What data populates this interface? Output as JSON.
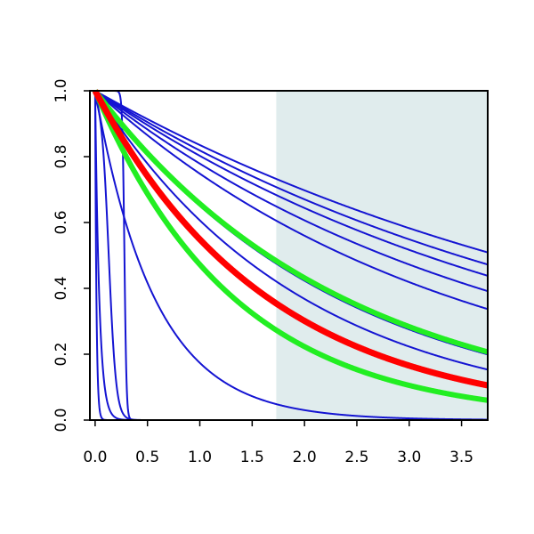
{
  "chart_data": {
    "type": "line",
    "title": "",
    "xlabel": "",
    "ylabel": "",
    "xlim": [
      -0.05,
      3.75
    ],
    "ylim": [
      0.0,
      1.0
    ],
    "grid": false,
    "legend": "none",
    "shaded_region": {
      "x_start": 1.73,
      "x_end": 3.75,
      "color": "#e0eced"
    },
    "x_ticks": [
      0.0,
      0.5,
      1.0,
      1.5,
      2.0,
      2.5,
      3.0,
      3.5
    ],
    "x_tick_labels": [
      "0.0",
      "0.5",
      "1.0",
      "1.5",
      "2.0",
      "2.5",
      "3.0",
      "3.5"
    ],
    "y_ticks": [
      0.0,
      0.2,
      0.4,
      0.6,
      0.8,
      1.0
    ],
    "y_tick_labels": [
      "0.0",
      "0.2",
      "0.4",
      "0.6",
      "0.8",
      "1.0"
    ],
    "colors": {
      "blue": "#1414d2",
      "red": "#ff0000",
      "green": "#22ee22",
      "axis": "#000000"
    },
    "series": [
      {
        "kind": "exp",
        "rate": 0.18,
        "color": "blue",
        "width": 2
      },
      {
        "kind": "exp",
        "rate": 0.2,
        "color": "blue",
        "width": 2
      },
      {
        "kind": "exp",
        "rate": 0.22,
        "color": "blue",
        "width": 2
      },
      {
        "kind": "exp",
        "rate": 0.25,
        "color": "blue",
        "width": 2
      },
      {
        "kind": "exp",
        "rate": 0.29,
        "color": "blue",
        "width": 2
      },
      {
        "kind": "exp",
        "rate": 0.43,
        "color": "blue",
        "width": 2
      },
      {
        "kind": "exp",
        "rate": 0.5,
        "color": "blue",
        "width": 2
      },
      {
        "kind": "exp",
        "rate": 0.42,
        "color": "green",
        "width": 6
      },
      {
        "kind": "exp",
        "rate": 0.6,
        "color": "red",
        "width": 7
      },
      {
        "kind": "exp",
        "rate": 0.75,
        "color": "green",
        "width": 6
      },
      {
        "kind": "exp",
        "rate": 1.75,
        "color": "blue",
        "width": 2
      },
      {
        "kind": "logistic",
        "mid": 0.28,
        "scale": 0.01,
        "color": "blue",
        "width": 2
      },
      {
        "kind": "logistic",
        "mid": 0.13,
        "scale": 0.035,
        "color": "blue",
        "width": 2
      },
      {
        "kind": "exp",
        "rate": 25,
        "color": "blue",
        "width": 2
      },
      {
        "kind": "exp",
        "rate": 80,
        "color": "blue",
        "width": 2
      }
    ]
  }
}
